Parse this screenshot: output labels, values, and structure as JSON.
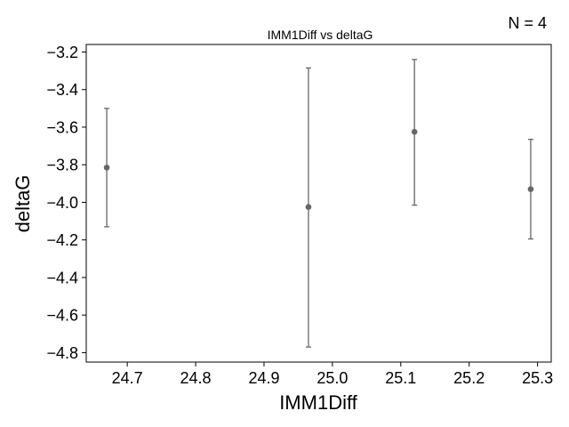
{
  "chart_data": {
    "type": "scatter",
    "title": "IMM1Diff vs deltaG",
    "xlabel": "IMM1Diff",
    "ylabel": "deltaG",
    "annotation": "N = 4",
    "xlim": [
      24.64,
      25.32
    ],
    "ylim": [
      -4.85,
      -3.16
    ],
    "xticks": [
      24.7,
      24.8,
      24.9,
      25.0,
      25.1,
      25.2,
      25.3
    ],
    "xtick_labels": [
      "24.7",
      "24.8",
      "24.9",
      "25.0",
      "25.1",
      "25.2",
      "25.3"
    ],
    "yticks": [
      -3.2,
      -3.4,
      -3.6,
      -3.8,
      -4.0,
      -4.2,
      -4.4,
      -4.6,
      -4.8
    ],
    "ytick_labels": [
      "−3.2",
      "−3.4",
      "−3.6",
      "−3.8",
      "−4.0",
      "−4.2",
      "−4.4",
      "−4.6",
      "−4.8"
    ],
    "grid": false,
    "marker_color": "#666666",
    "points": [
      {
        "x": 24.67,
        "y": -3.815,
        "err_low": -4.13,
        "err_high": -3.5
      },
      {
        "x": 24.965,
        "y": -4.025,
        "err_low": -4.77,
        "err_high": -3.285
      },
      {
        "x": 25.12,
        "y": -3.625,
        "err_low": -4.015,
        "err_high": -3.24
      },
      {
        "x": 25.29,
        "y": -3.93,
        "err_low": -4.195,
        "err_high": -3.665
      }
    ]
  }
}
